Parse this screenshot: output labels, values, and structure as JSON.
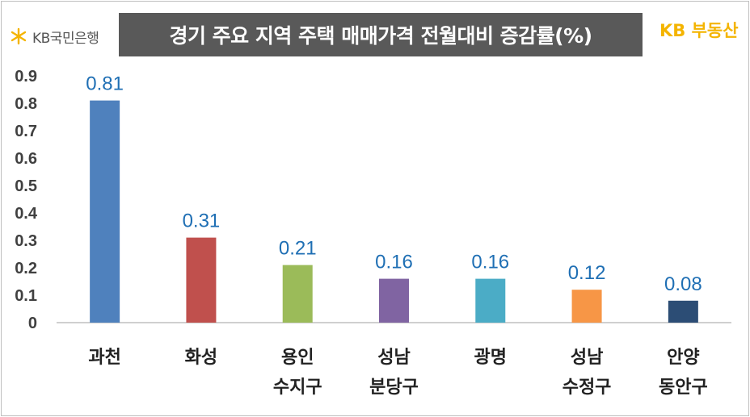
{
  "header": {
    "bank_logo": "KB국민은행",
    "title": "경기 주요 지역 주택 매매가격 전월대비 증감률(%)",
    "realestate_logo_kb": "KB",
    "realestate_logo_text": "부동산"
  },
  "colors": {
    "title_bg": "#595959",
    "logo_yellow": "#f4b400",
    "data_label": "#1f6fb4",
    "axis_text": "#404040"
  },
  "chart_data": {
    "type": "bar",
    "title": "경기 주요 지역 주택 매매가격 전월대비 증감률(%)",
    "categories": [
      [
        "과천"
      ],
      [
        "화성"
      ],
      [
        "용인",
        "수지구"
      ],
      [
        "성남",
        "분당구"
      ],
      [
        "광명"
      ],
      [
        "성남",
        "수정구"
      ],
      [
        "안양",
        "동안구"
      ]
    ],
    "values": [
      0.81,
      0.31,
      0.21,
      0.16,
      0.16,
      0.12,
      0.08
    ],
    "value_labels": [
      "0.81",
      "0.31",
      "0.21",
      "0.16",
      "0.16",
      "0.12",
      "0.08"
    ],
    "bar_colors": [
      "#4f81bd",
      "#c0504d",
      "#9bbb59",
      "#8064a2",
      "#4bacc6",
      "#f79646",
      "#2c4d75"
    ],
    "ylim": [
      0,
      0.9
    ],
    "yticks": [
      "0",
      "0.1",
      "0.2",
      "0.3",
      "0.4",
      "0.5",
      "0.6",
      "0.7",
      "0.8",
      "0.9"
    ],
    "grid": false,
    "legend": false
  }
}
